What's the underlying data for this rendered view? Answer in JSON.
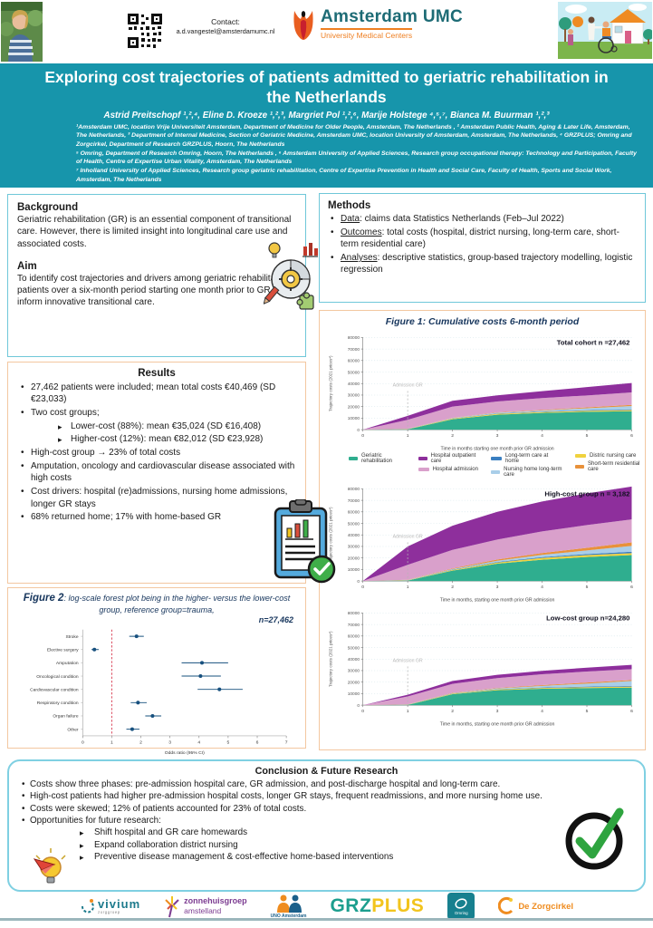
{
  "header": {
    "contact_label": "Contact:",
    "contact_email": "a.d.vangestel@amsterdamumc.nl",
    "logo_title": "Amsterdam UMC",
    "logo_subtitle": "University Medical Centers"
  },
  "title_block": {
    "title": "Exploring cost trajectories of patients admitted to geriatric rehabilitation in the Netherlands",
    "authors": "Astrid Preitschopf ¹,²,⁴, Eline D. Kroeze ¹,²,³, Margriet Pol ¹,²,⁶, Marije Holstege ⁴,⁵,⁷, Bianca M. Buurman ¹,²,³",
    "affiliations": [
      "¹Amsterdam UMC, location Vrije Universiteit Amsterdam, Department of Medicine for Older People, Amsterdam, The Netherlands , ² Amsterdam Public Health, Aging & Later Life, Amsterdam, The Netherlands, ³ Department of Internal Medicine, Section of Geriatric Medicine, Amsterdam UMC, location University of Amsterdam, Amsterdam, The Netherlands, ⁴ GRZPLUS; Omring and Zorgcirkel, Department of Research GRZPLUS, Hoorn, The Netherlands",
      "⁵ Omring, Department of Research Omring, Hoorn, The Netherlands , ⁶ Amsterdam University of Applied Sciences, Research group occupational therapy: Technology and Participation, Faculty of Health, Centre of Expertise Urban Vitality, Amsterdam, The Netherlands",
      "⁷ Inholland University of Applied Sciences, Research group geriatric rehabilitation, Centre of Expertise Prevention in Health and Social Care, Faculty of Health, Sports and Social Work, Amsterdam, The Netherlands"
    ]
  },
  "background": {
    "heading": "Background",
    "text": "Geriatric rehabilitation (GR) is an essential component of transitional care. However, there is limited insight into longitudinal care use and associated costs.",
    "aim_heading": "Aim",
    "aim_text": "To identify cost trajectories and drivers among geriatric rehabilitation patients over a six-month period starting one month prior to GR, to inform innovative transitional care."
  },
  "methods": {
    "heading": "Methods",
    "items": [
      {
        "label": "Data",
        "text": ": claims data Statistics Netherlands (Feb–Jul 2022)"
      },
      {
        "label": "Outcomes",
        "text": ": total costs (hospital, district nursing, long-term care, short-term residential care)"
      },
      {
        "label": "Analyses",
        "text": ": descriptive statistics, group-based trajectory modelling, logistic regression"
      }
    ]
  },
  "results": {
    "heading": "Results",
    "bullets": [
      {
        "text": "27,462 patients were included; mean total  costs €40,469 (SD €23,033)"
      },
      {
        "text": "Two cost groups;",
        "subs": [
          "Lower-cost (88%): mean €35,024 (SD €16,408)",
          "Higher-cost (12%): mean €82,012 (SD €23,928)"
        ]
      },
      {
        "text": "High-cost group → 23% of total costs"
      },
      {
        "text": "Amputation, oncology and cardiovascular disease associated with high costs"
      },
      {
        "text": "Cost drivers: hospital (re)admissions, nursing home admissions, longer GR stays"
      },
      {
        "text": "68% returned home; 17% with home-based GR"
      }
    ]
  },
  "figure1": {
    "title": "Figure 1: Cumulative costs 6-month period"
  },
  "figure2": {
    "title_bold": "Figure 2",
    "title_rest": ": log-scale forest plot being in the higher- versus the lower-cost group, reference group=trauma,",
    "title_n": "n=27,462"
  },
  "legend": {
    "columns": [
      [
        {
          "label": "Geriatric rehabilitation",
          "color": "#2FAE8F"
        }
      ],
      [
        {
          "label": "Hospital outpatient care",
          "color": "#8E2F9C"
        },
        {
          "label": "Hospital admission",
          "color": "#D9A0CB"
        }
      ],
      [
        {
          "label": "Long-term care at home",
          "color": "#3A7FC1"
        },
        {
          "label": "Nursing home long-term care",
          "color": "#A9CEE9"
        }
      ],
      [
        {
          "label": "Distric nursing care",
          "color": "#F0D23E"
        },
        {
          "label": "Short-term residential care",
          "color": "#E8913A"
        }
      ]
    ]
  },
  "conclusion": {
    "heading": "Conclusion & Future Research",
    "bullets": [
      "Costs show three phases: pre-admission hospital care, GR admission, and post-discharge hospital and long-term care.",
      "High-cost patients had higher pre-admission hospital costs, longer GR stays, frequent readmissions, and more nursing home use.",
      "Costs were skewed; 12% of patients accounted for 23% of total costs.",
      "Opportunities for future research:"
    ],
    "future_items": [
      "Shift hospital and GR care homewards",
      "Expand collaboration district nursing",
      "Preventive disease management & cost-effective home-based interventions"
    ]
  },
  "footer": {
    "logos": [
      {
        "name": "vivium",
        "text": "vivium",
        "sub": "zorggroep"
      },
      {
        "name": "zonnehuisgroep-amstelland",
        "text": "zonnehuisgroep",
        "sub": "amstelland"
      },
      {
        "name": "uno-amsterdam",
        "text": "UNO Amsterdam",
        "sub": ""
      },
      {
        "name": "grzplus",
        "text": "GRZ",
        "sub": "PLUS"
      },
      {
        "name": "omring",
        "text": "Omring",
        "sub": ""
      },
      {
        "name": "de-zorgcirkel",
        "text": "De Zorgcirkel",
        "sub": ""
      }
    ]
  },
  "chart_data": [
    {
      "id": "total",
      "type": "area",
      "annotation": "Total cohort n =27,462",
      "admission_label": "Admission GR",
      "admission_x": 1,
      "x": [
        0,
        1,
        2,
        3,
        4,
        5,
        6
      ],
      "xlabel": "Time in months starting one month prior GR admission",
      "ylabel": "Trajectory costs (2021 prices*)",
      "ylim": [
        0,
        80000
      ],
      "ytick_step": 10000,
      "series": [
        {
          "name": "Geriatric rehabilitation",
          "color": "#2FAE8F",
          "values": [
            0,
            300,
            9000,
            13000,
            14500,
            15500,
            16000
          ]
        },
        {
          "name": "Distric nursing care",
          "color": "#F0D23E",
          "values": [
            0,
            200,
            600,
            700,
            800,
            900,
            1000
          ]
        },
        {
          "name": "Long-term care at home",
          "color": "#3A7FC1",
          "values": [
            0,
            100,
            200,
            300,
            400,
            500,
            600
          ]
        },
        {
          "name": "Nursing home long-term care",
          "color": "#A9CEE9",
          "values": [
            0,
            100,
            300,
            700,
            900,
            1700,
            2900
          ]
        },
        {
          "name": "Short-term residential care",
          "color": "#E8913A",
          "values": [
            0,
            100,
            200,
            300,
            500,
            700,
            1000
          ]
        },
        {
          "name": "Hospital admission",
          "color": "#D9A0CB",
          "values": [
            0,
            7700,
            9700,
            9500,
            10300,
            10400,
            10800
          ]
        },
        {
          "name": "Hospital outpatient care",
          "color": "#8E2F9C",
          "values": [
            0,
            3500,
            5000,
            5300,
            6000,
            7200,
            8200
          ]
        }
      ]
    },
    {
      "id": "high",
      "type": "area",
      "annotation": "High-cost group n = 3,182",
      "admission_label": "Admission GR",
      "admission_x": 1,
      "x": [
        0,
        1,
        2,
        3,
        4,
        5,
        6
      ],
      "xlabel": "Time in months, starting one month prior GR admission",
      "ylabel": "Trajectory costs (2021 prices*)",
      "ylim": [
        0,
        80000
      ],
      "ytick_step": 10000,
      "series": [
        {
          "name": "Geriatric rehabilitation",
          "color": "#2FAE8F",
          "values": [
            0,
            400,
            9000,
            15000,
            18500,
            20800,
            22500
          ]
        },
        {
          "name": "Distric nursing care",
          "color": "#F0D23E",
          "values": [
            0,
            200,
            600,
            1000,
            1500,
            1700,
            1700
          ]
        },
        {
          "name": "Long-term care at home",
          "color": "#3A7FC1",
          "values": [
            0,
            100,
            300,
            500,
            700,
            900,
            1200
          ]
        },
        {
          "name": "Nursing home long-term care",
          "color": "#A9CEE9",
          "values": [
            0,
            200,
            500,
            1100,
            2000,
            3100,
            5100
          ]
        },
        {
          "name": "Short-term residential care",
          "color": "#E8913A",
          "values": [
            0,
            200,
            500,
            1100,
            1600,
            2300,
            3000
          ]
        },
        {
          "name": "Hospital admission",
          "color": "#D9A0CB",
          "values": [
            0,
            12900,
            16100,
            17300,
            18700,
            19700,
            20000
          ]
        },
        {
          "name": "Hospital outpatient care",
          "color": "#8E2F9C",
          "values": [
            0,
            16000,
            21000,
            24000,
            26000,
            27500,
            28500
          ]
        }
      ]
    },
    {
      "id": "low",
      "type": "area",
      "annotation": "Low-cost group n=24,280",
      "admission_label": "Admission GR",
      "admission_x": 1,
      "x": [
        0,
        1,
        2,
        3,
        4,
        5,
        6
      ],
      "xlabel": "Time in months, starting one month prior GR admission",
      "ylabel": "Trajectory costs (2021 prices*)",
      "ylim": [
        0,
        80000
      ],
      "ytick_step": 10000,
      "series": [
        {
          "name": "Geriatric rehabilitation",
          "color": "#2FAE8F",
          "values": [
            0,
            200,
            9500,
            13000,
            14200,
            14800,
            15200
          ]
        },
        {
          "name": "Distric nursing care",
          "color": "#F0D23E",
          "values": [
            0,
            200,
            500,
            600,
            700,
            800,
            900
          ]
        },
        {
          "name": "Long-term care at home",
          "color": "#3A7FC1",
          "values": [
            0,
            100,
            200,
            300,
            400,
            500,
            600
          ]
        },
        {
          "name": "Nursing home long-term care",
          "color": "#A9CEE9",
          "values": [
            0,
            100,
            200,
            600,
            1400,
            2600,
            4300
          ]
        },
        {
          "name": "Short-term residential care",
          "color": "#E8913A",
          "values": [
            0,
            100,
            300,
            400,
            700,
            900,
            800
          ]
        },
        {
          "name": "Hospital admission",
          "color": "#D9A0CB",
          "values": [
            0,
            6800,
            7800,
            8600,
            9400,
            9600,
            9400
          ]
        },
        {
          "name": "Hospital outpatient care",
          "color": "#8E2F9C",
          "values": [
            0,
            1500,
            2500,
            2800,
            3000,
            3300,
            3800
          ]
        }
      ]
    },
    {
      "id": "forest",
      "type": "forest",
      "categories": [
        "Stroke",
        "Elective surgery",
        "Amputation",
        "Oncological condition",
        "Cardiovascular condition",
        "Respiratory condition",
        "Organ failure",
        "Other"
      ],
      "or": [
        1.85,
        0.4,
        4.1,
        4.05,
        4.7,
        1.9,
        2.4,
        1.7
      ],
      "ci_low": [
        1.6,
        0.3,
        3.4,
        3.4,
        3.95,
        1.65,
        2.15,
        1.5
      ],
      "ci_high": [
        2.1,
        0.55,
        5.0,
        4.75,
        5.5,
        2.2,
        2.7,
        1.95
      ],
      "xlim": [
        0,
        7
      ],
      "ref_line": 1,
      "xlabel": "Odds ratio (95% CI)",
      "point_color": "#17507E",
      "ref_color": "#DD5468"
    }
  ],
  "colors": {
    "band": "#1795ab",
    "teal_border": "#6fc7d9",
    "peach_border": "#f3c7a0",
    "conclusion_border": "#7fd0e2"
  }
}
